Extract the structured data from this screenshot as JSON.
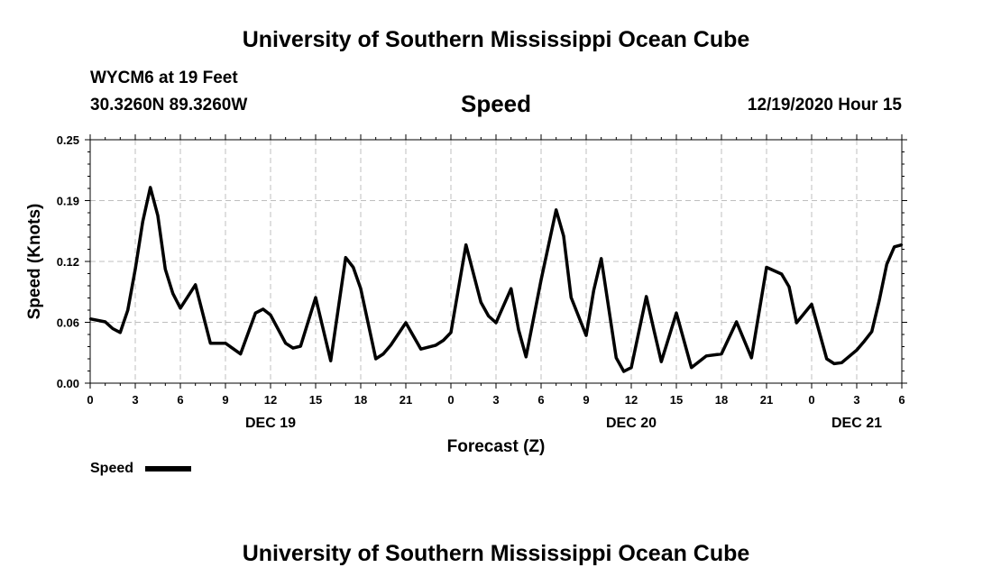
{
  "header": {
    "title": "University of Southern Mississippi Ocean Cube",
    "station": "WYCM6 at 19 Feet",
    "coords": "30.3260N 89.3260W",
    "metric": "Speed",
    "timestamp": "12/19/2020 Hour 15"
  },
  "footer": {
    "title": "University of Southern Mississippi Ocean Cube"
  },
  "legend": {
    "label": "Speed"
  },
  "colors": {
    "line": "#000000",
    "grid": "#bfbfbf"
  },
  "chart_data": {
    "type": "line",
    "title": "Speed",
    "xlabel": "Forecast (Z)",
    "ylabel": "Speed (Knots)",
    "ylim": [
      0,
      0.25
    ],
    "xlim": [
      0,
      54
    ],
    "yticks": [
      "0.00",
      "0.06",
      "0.12",
      "0.19",
      "0.25"
    ],
    "ytick_values": [
      0,
      0.0625,
      0.125,
      0.1875,
      0.25
    ],
    "xticks": [
      "0",
      "3",
      "6",
      "9",
      "12",
      "15",
      "18",
      "21",
      "0",
      "3",
      "6",
      "9",
      "12",
      "15",
      "18",
      "21",
      "0",
      "3",
      "6"
    ],
    "day_labels": [
      {
        "label": "DEC 19",
        "at": 12
      },
      {
        "label": "DEC 20",
        "at": 36
      },
      {
        "label": "DEC 21",
        "at": 51
      }
    ],
    "grid": true,
    "series": [
      {
        "name": "Speed",
        "x": [
          0,
          1,
          1.5,
          2,
          2.5,
          3,
          3.5,
          4,
          4.5,
          5,
          5.5,
          6,
          7,
          8,
          9,
          10,
          11,
          11.5,
          12,
          13,
          13.5,
          14,
          15,
          16,
          17,
          17.5,
          18,
          19,
          19.5,
          20,
          21,
          22,
          23,
          23.5,
          24,
          25,
          26,
          26.5,
          27,
          28,
          28.5,
          29,
          30,
          31,
          31.5,
          32,
          33,
          33.5,
          34,
          35,
          35.5,
          36,
          37,
          37.5,
          38,
          39,
          40,
          41,
          42,
          43,
          44,
          45,
          46,
          46.5,
          47,
          48,
          49,
          49.5,
          50,
          51,
          51.5,
          52,
          52.5,
          53,
          53.5,
          54
        ],
        "values": [
          0.066,
          0.063,
          0.056,
          0.052,
          0.075,
          0.117,
          0.166,
          0.201,
          0.172,
          0.117,
          0.092,
          0.077,
          0.101,
          0.041,
          0.041,
          0.03,
          0.072,
          0.076,
          0.07,
          0.041,
          0.036,
          0.038,
          0.088,
          0.023,
          0.129,
          0.119,
          0.097,
          0.025,
          0.03,
          0.039,
          0.062,
          0.035,
          0.039,
          0.044,
          0.052,
          0.142,
          0.083,
          0.069,
          0.062,
          0.097,
          0.055,
          0.027,
          0.106,
          0.178,
          0.151,
          0.088,
          0.049,
          0.095,
          0.128,
          0.026,
          0.012,
          0.016,
          0.089,
          0.055,
          0.022,
          0.072,
          0.016,
          0.028,
          0.03,
          0.063,
          0.026,
          0.119,
          0.112,
          0.099,
          0.062,
          0.081,
          0.025,
          0.02,
          0.021,
          0.034,
          0.043,
          0.053,
          0.085,
          0.122,
          0.14,
          0.142
        ]
      }
    ]
  }
}
